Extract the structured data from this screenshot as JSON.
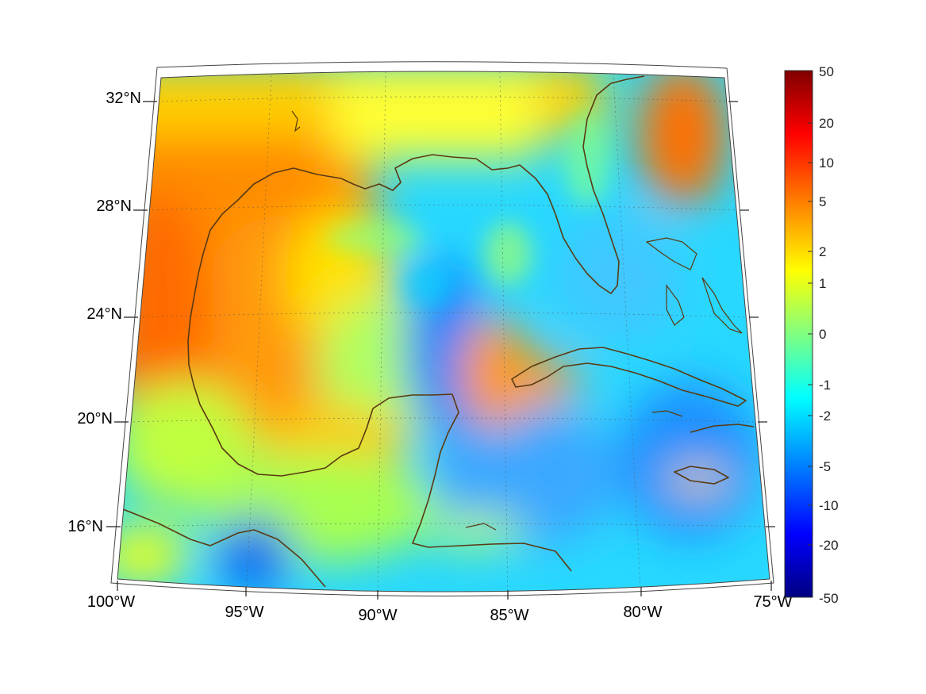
{
  "map": {
    "lat_labels": [
      "32°N",
      "28°N",
      "24°N",
      "20°N",
      "16°N"
    ],
    "lon_labels": [
      "100°W",
      "95°W",
      "90°W",
      "85°W",
      "80°W",
      "75°W"
    ],
    "lat_range": [
      14,
      33
    ],
    "lon_range": [
      -100,
      -75
    ]
  },
  "colorbar": {
    "tick_labels": [
      "50",
      "20",
      "10",
      "5",
      "2",
      "1",
      "0",
      "-1",
      "-2",
      "-5",
      "-10",
      "-20",
      "-50"
    ],
    "colormap": [
      "#800000",
      "#ff0000",
      "#ff8000",
      "#ffff00",
      "#80ff80",
      "#00ffff",
      "#0080ff",
      "#0000ff",
      "#000080"
    ]
  },
  "colors": {
    "coastline": "#5a3a12"
  }
}
